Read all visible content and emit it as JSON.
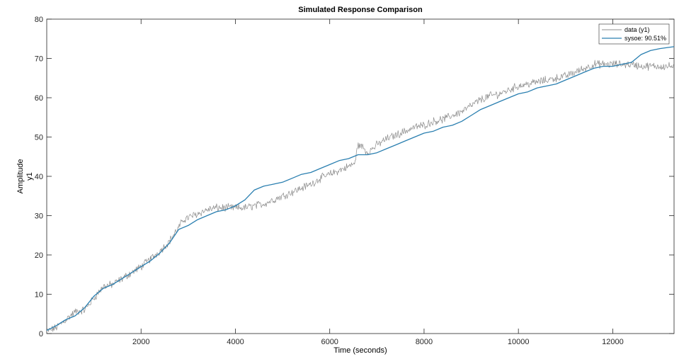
{
  "chart_data": {
    "type": "line",
    "title": "Simulated Response Comparison",
    "xlabel": "Time (seconds)",
    "ylabel": "Amplitude",
    "channel_label": "y1",
    "xlim": [
      0,
      13300
    ],
    "ylim": [
      0,
      80
    ],
    "xticks": [
      2000,
      4000,
      6000,
      8000,
      10000,
      12000
    ],
    "yticks": [
      0,
      10,
      20,
      30,
      40,
      50,
      60,
      70,
      80
    ],
    "grid": false,
    "legend_position": "top-right",
    "series": [
      {
        "name": "data (y1)",
        "color": "#8c8c8c",
        "style": "noisy",
        "x": [
          0,
          200,
          400,
          600,
          800,
          1000,
          1200,
          1400,
          1600,
          1800,
          2000,
          2200,
          2400,
          2600,
          2800,
          2900,
          3000,
          3200,
          3400,
          3600,
          3800,
          4000,
          4200,
          4400,
          4600,
          4800,
          5000,
          5200,
          5400,
          5600,
          5800,
          6000,
          6200,
          6400,
          6550,
          6580,
          6700,
          6800,
          7000,
          7200,
          7400,
          7600,
          7800,
          8000,
          8200,
          8400,
          8600,
          8800,
          9000,
          9200,
          9400,
          9600,
          9800,
          10000,
          10200,
          10400,
          10600,
          10800,
          11000,
          11200,
          11400,
          11600,
          11800,
          12000,
          12200,
          12400,
          12600,
          12800,
          13000,
          13300
        ],
        "y": [
          0.5,
          1.5,
          3.5,
          5.5,
          6.0,
          9.0,
          12.0,
          12.5,
          14.0,
          15.5,
          17.0,
          19.0,
          21.0,
          23.5,
          27.0,
          29.0,
          29.5,
          30.5,
          31.5,
          32.0,
          32.0,
          32.0,
          32.0,
          32.5,
          33.0,
          34.0,
          35.0,
          36.0,
          37.0,
          38.0,
          39.5,
          40.5,
          41.5,
          42.5,
          43.5,
          48.0,
          47.5,
          46.0,
          48.0,
          49.5,
          50.5,
          51.5,
          52.5,
          53.0,
          54.0,
          54.5,
          55.5,
          56.5,
          58.0,
          59.5,
          60.5,
          61.0,
          62.0,
          63.0,
          63.5,
          64.0,
          64.5,
          65.0,
          65.5,
          66.5,
          67.5,
          68.5,
          68.5,
          68.5,
          68.5,
          68.5,
          68.0,
          68.0,
          68.0,
          68.0
        ]
      },
      {
        "name": "sysoe: 90.51%",
        "color": "#2a7fb0",
        "style": "smooth",
        "x": [
          0,
          200,
          400,
          600,
          800,
          1000,
          1200,
          1400,
          1600,
          1800,
          2000,
          2200,
          2400,
          2600,
          2800,
          3000,
          3200,
          3400,
          3600,
          3800,
          4000,
          4200,
          4400,
          4600,
          4800,
          5000,
          5200,
          5400,
          5600,
          5800,
          6000,
          6200,
          6400,
          6600,
          6800,
          7000,
          7200,
          7400,
          7600,
          7800,
          8000,
          8200,
          8400,
          8600,
          8800,
          9000,
          9200,
          9400,
          9600,
          9800,
          10000,
          10200,
          10400,
          10600,
          10800,
          11000,
          11200,
          11400,
          11600,
          11800,
          12000,
          12200,
          12400,
          12600,
          12800,
          13000,
          13300
        ],
        "y": [
          0.8,
          2.0,
          3.5,
          4.5,
          6.5,
          9.5,
          11.5,
          12.5,
          14.0,
          15.5,
          17.0,
          18.5,
          20.5,
          23.0,
          26.5,
          27.5,
          29.0,
          30.0,
          31.0,
          31.5,
          32.5,
          34.0,
          36.5,
          37.5,
          38.0,
          38.5,
          39.5,
          40.5,
          41.0,
          42.0,
          43.0,
          44.0,
          44.5,
          45.5,
          45.5,
          46.0,
          47.0,
          48.0,
          49.0,
          50.0,
          51.0,
          51.5,
          52.5,
          53.0,
          54.0,
          55.5,
          57.0,
          58.0,
          59.0,
          60.0,
          61.0,
          61.5,
          62.5,
          63.0,
          63.5,
          64.5,
          65.5,
          66.5,
          67.5,
          68.0,
          68.0,
          68.5,
          69.0,
          71.0,
          72.0,
          72.5,
          73.0
        ]
      }
    ]
  }
}
